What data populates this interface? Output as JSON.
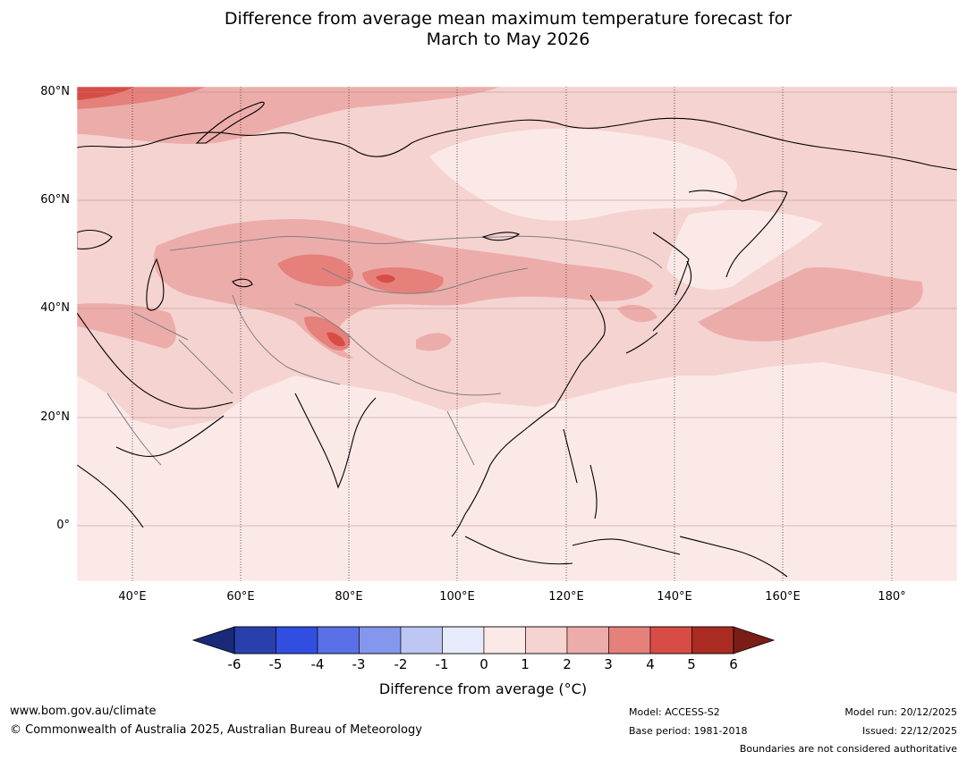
{
  "title": {
    "line1": "Difference from average mean maximum temperature forecast for",
    "line2": "March to May 2026"
  },
  "map": {
    "lat_labels": [
      "80°N",
      "60°N",
      "40°N",
      "20°N",
      "0°"
    ],
    "lon_labels": [
      "40°E",
      "60°E",
      "80°E",
      "100°E",
      "120°E",
      "140°E",
      "160°E",
      "180°"
    ],
    "extent": {
      "lon_min": 30,
      "lon_max": 192,
      "lat_min": -10,
      "lat_max": 81
    }
  },
  "colorbar": {
    "ticks": [
      "-6",
      "-5",
      "-4",
      "-3",
      "-2",
      "-1",
      "0",
      "1",
      "2",
      "3",
      "4",
      "5",
      "6"
    ],
    "colors": [
      "#1a2a7a",
      "#2a3fae",
      "#304fe0",
      "#5a70e6",
      "#8597ec",
      "#bec7f3",
      "#e7eafa",
      "#fbe9e8",
      "#f5d3d1",
      "#ecadaa",
      "#e5807b",
      "#d74d45",
      "#a92b22",
      "#7a1d16"
    ],
    "label": "Difference from average (°C)"
  },
  "footer": {
    "website": "www.bom.gov.au/climate",
    "copyright": "© Commonwealth of Australia 2025, Australian Bureau of Meteorology",
    "model": "Model: ACCESS-S2",
    "base_period": "Base period: 1981-2018",
    "model_run": "Model run: 20/12/2025",
    "issued": "Issued: 22/12/2025",
    "disclaimer": "Boundaries are not considered authoritative"
  }
}
